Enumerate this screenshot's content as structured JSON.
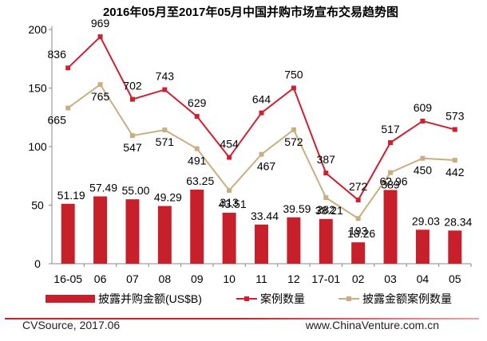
{
  "chart_data": {
    "type": "bar+line",
    "title": "2016年05月至2017年05月中国并购市场宣布交易趋势图",
    "categories": [
      "16-05",
      "06",
      "07",
      "08",
      "09",
      "10",
      "11",
      "12",
      "17-01",
      "02",
      "03",
      "04",
      "05"
    ],
    "y_ticks": [
      0,
      50,
      100,
      150,
      200
    ],
    "ylim": [
      0,
      200
    ],
    "series": [
      {
        "name": "披露并购金额(US$B)",
        "kind": "bar",
        "color": "#c8202a",
        "values": [
          51.19,
          57.49,
          55.0,
          49.29,
          63.25,
          43.51,
          33.44,
          39.59,
          38.21,
          18.26,
          62.96,
          29.03,
          28.34
        ],
        "labels": [
          "51.19",
          "57.49",
          "55.00",
          "49.29",
          "63.25",
          "43.51",
          "33.44",
          "39.59",
          "38.21",
          "18.26",
          "62.96",
          "29.03",
          "28.34"
        ]
      },
      {
        "name": "案例数量",
        "kind": "line",
        "color": "#d02030",
        "values": [
          836,
          969,
          702,
          743,
          629,
          454,
          644,
          750,
          387,
          272,
          517,
          609,
          573
        ]
      },
      {
        "name": "披露金额案例数量",
        "kind": "line",
        "color": "#c9ae82",
        "values": [
          665,
          765,
          547,
          571,
          491,
          313,
          467,
          572,
          282,
          193,
          389,
          450,
          442
        ]
      }
    ],
    "legend_position": "bottom"
  },
  "footer": {
    "source": "CVSource, 2017.06",
    "website": "www.ChinaVenture.com.cn",
    "line_color_left": "#d81e2a",
    "line_color_right": "#f0a0a8"
  }
}
